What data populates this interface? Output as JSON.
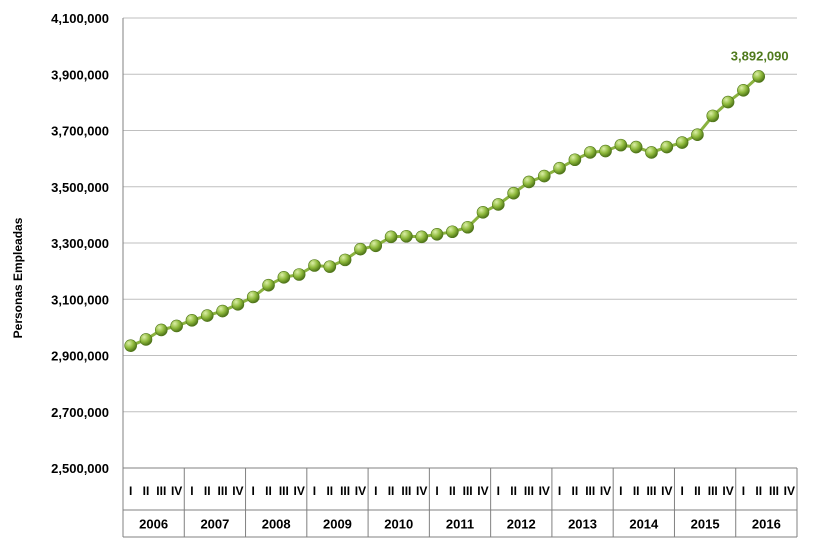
{
  "chart_data": {
    "type": "line",
    "title": "",
    "xlabel": "",
    "ylabel": "Personas  Empleadas",
    "ylim": [
      2500000,
      4100000
    ],
    "yticks": [
      2500000,
      2700000,
      2900000,
      3100000,
      3300000,
      3500000,
      3700000,
      3900000,
      4100000
    ],
    "ytick_labels": [
      "2,500,000",
      "2,700,000",
      "2,900,000",
      "3,100,000",
      "3,300,000",
      "3,500,000",
      "3,700,000",
      "3,900,000",
      "4,100,000"
    ],
    "grid": true,
    "legend": "none",
    "years": [
      "2006",
      "2007",
      "2008",
      "2009",
      "2010",
      "2011",
      "2012",
      "2013",
      "2014",
      "2015",
      "2016"
    ],
    "quarters": [
      "I",
      "II",
      "III",
      "IV"
    ],
    "series": [
      {
        "values": [
          2935000,
          2957000,
          2991000,
          3005000,
          3025000,
          3042000,
          3058000,
          3082000,
          3108000,
          3150000,
          3178000,
          3188000,
          3220000,
          3216000,
          3240000,
          3278000,
          3290000,
          3322000,
          3324000,
          3322000,
          3331000,
          3340000,
          3356000,
          3409000,
          3437000,
          3477000,
          3517000,
          3538000,
          3566000,
          3596000,
          3622000,
          3627000,
          3648000,
          3641000,
          3622000,
          3641000,
          3657000,
          3685000,
          3752000,
          3801000,
          3843000,
          3892090
        ]
      }
    ],
    "annotations": [
      {
        "text": "3,892,090",
        "point_index": 41
      }
    ],
    "colors": {
      "line": "#8ab23f",
      "marker": "#8fba3c",
      "marker_dark": "#4f7519",
      "marker_light": "#dcefa8",
      "annotation": "#4f7a1c",
      "grid": "#bfbfbf",
      "axis": "#808080"
    }
  }
}
